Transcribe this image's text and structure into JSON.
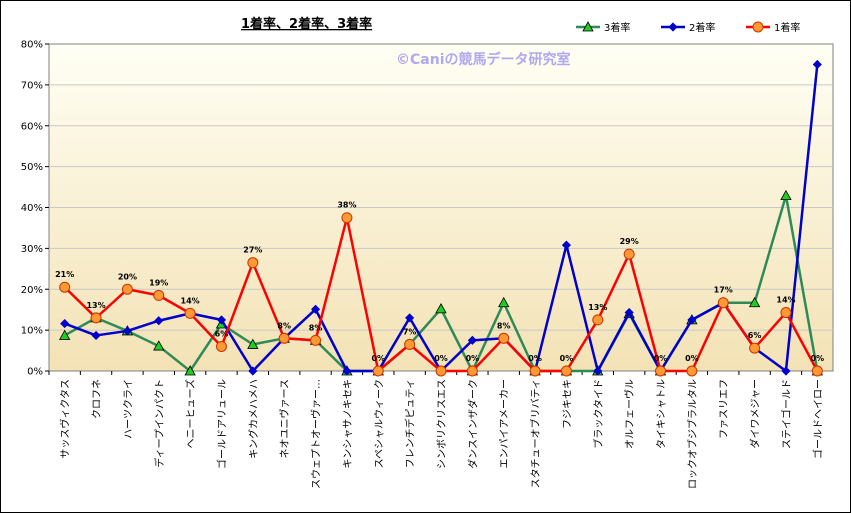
{
  "chart_data": {
    "type": "line",
    "title": "1着率、2着率、3着率",
    "watermark": "©Caniの競馬データ研究室",
    "xlabel": "",
    "ylabel": "",
    "ylim": [
      0,
      80
    ],
    "yticks": [
      "0%",
      "10%",
      "20%",
      "30%",
      "40%",
      "50%",
      "60%",
      "70%",
      "80%"
    ],
    "grid": true,
    "legend_position": "top-right",
    "categories": [
      "サッスヴィクタス",
      "クロフネ",
      "ハーツクライ",
      "ディープインパクト",
      "ヘニーヒューズ",
      "ゴールドアリュール",
      "キングカメハメハ",
      "ネオユニヴァース",
      "スウェプトオーヴァー…",
      "キンシャサノキセキ",
      "スペシャルウィーク",
      "フレンチデピュティ",
      "シンボリクリスエス",
      "ダンスインザダーク",
      "エンパイアメーカー",
      "スタチューオブリバティ",
      "フジキセキ",
      "ブラックタイド",
      "オルフェーヴル",
      "タイキシャトル",
      "ロックオブジブラルタル",
      "ファスリエフ",
      "ダイワメジャー",
      "ステイゴールド",
      "ゴールドヘイロー"
    ],
    "series": [
      {
        "name": "3着率",
        "color": "#2e8b57",
        "marker": "triangle",
        "marker_fill": "#22cc22",
        "values": [
          8.7,
          13,
          9.8,
          6.1,
          0,
          11.5,
          6.5,
          8,
          7.5,
          0,
          0,
          6.5,
          15.2,
          0,
          16.7,
          0,
          0,
          0,
          14,
          0,
          12.5,
          16.7,
          16.7,
          42.9,
          0
        ]
      },
      {
        "name": "2着率",
        "color": "#0000cc",
        "marker": "diamond",
        "marker_fill": "#0000cc",
        "values": [
          11.6,
          8.7,
          9.8,
          12.3,
          14.1,
          12.5,
          0,
          8,
          15.1,
          0,
          0,
          13,
          0,
          7.5,
          8,
          0,
          30.8,
          0,
          14.3,
          0,
          12.5,
          16.7,
          5.6,
          0,
          75
        ]
      },
      {
        "name": "1着率",
        "color": "#ff0000",
        "marker": "circle",
        "marker_fill": "#ff9933",
        "values": [
          20.5,
          13,
          20,
          18.5,
          14.1,
          6,
          26.5,
          8,
          7.5,
          37.5,
          0,
          6.5,
          0,
          0,
          8,
          0,
          0,
          12.5,
          28.6,
          0,
          0,
          16.7,
          5.6,
          14.3,
          0
        ],
        "data_labels": [
          "21%",
          "13%",
          "20%",
          "19%",
          "14%",
          "6%",
          "27%",
          "8%",
          "8%",
          "38%",
          "0%",
          "7%",
          "0%",
          "0%",
          "8%",
          "0%",
          "0%",
          "13%",
          "29%",
          "0%",
          "0%",
          "17%",
          "6%",
          "14%",
          "0%"
        ]
      }
    ]
  },
  "colors": {
    "plot_top": "#fffff4",
    "plot_bottom": "#f3e2b5",
    "grid": "#c8c8c8"
  }
}
